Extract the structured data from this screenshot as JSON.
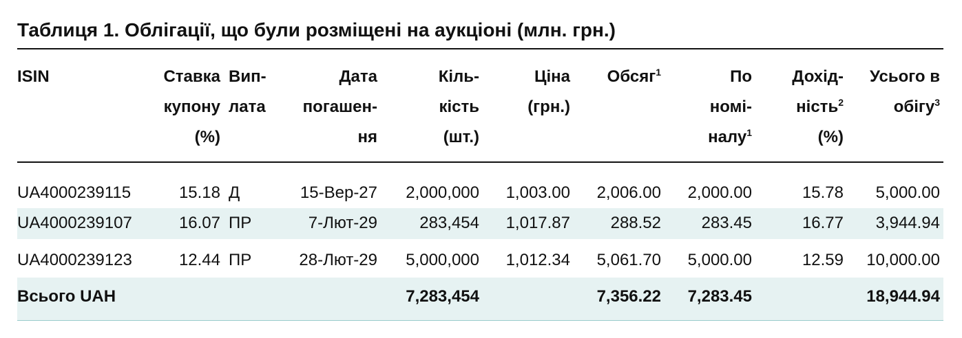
{
  "title": "Таблиця 1. Облігації, що були розміщені на аукціоні (млн. грн.)",
  "table": {
    "headers": [
      {
        "lines": [
          "ISIN"
        ]
      },
      {
        "lines": [
          "Ставка",
          "купону",
          "(%)"
        ]
      },
      {
        "lines": [
          "Вип-",
          "лата"
        ]
      },
      {
        "lines": [
          "Дата",
          "погашен-",
          "ня"
        ]
      },
      {
        "lines": [
          "Кіль-",
          "кість",
          "(шт.)"
        ]
      },
      {
        "lines": [
          "Ціна",
          "(грн.)"
        ]
      },
      {
        "lines": [
          {
            "text": "Обсяг",
            "sup": "1"
          }
        ]
      },
      {
        "lines": [
          "По",
          "номі-",
          {
            "text": "налу",
            "sup": "1"
          }
        ]
      },
      {
        "lines": [
          "Дохід-",
          {
            "text": "ність",
            "sup": "2"
          },
          "(%)"
        ]
      },
      {
        "lines": [
          "Усього в",
          {
            "text": "обігу",
            "sup": "3"
          }
        ]
      }
    ],
    "rows": [
      [
        "UA4000239115",
        "15.18",
        "Д",
        "15-Вер-27",
        "2,000,000",
        "1,003.00",
        "2,006.00",
        "2,000.00",
        "15.78",
        "5,000.00"
      ],
      [
        "UA4000239107",
        "16.07",
        "ПР",
        "7-Лют-29",
        "283,454",
        "1,017.87",
        "288.52",
        "283.45",
        "16.77",
        "3,944.94"
      ],
      [
        "UA4000239123",
        "12.44",
        "ПР",
        "28-Лют-29",
        "5,000,000",
        "1,012.34",
        "5,061.70",
        "5,000.00",
        "12.59",
        "10,000.00"
      ]
    ],
    "total": [
      "Всього UAH",
      null,
      null,
      null,
      "7,283,454",
      null,
      "7,356.22",
      "7,283.45",
      null,
      "18,944.94"
    ]
  }
}
